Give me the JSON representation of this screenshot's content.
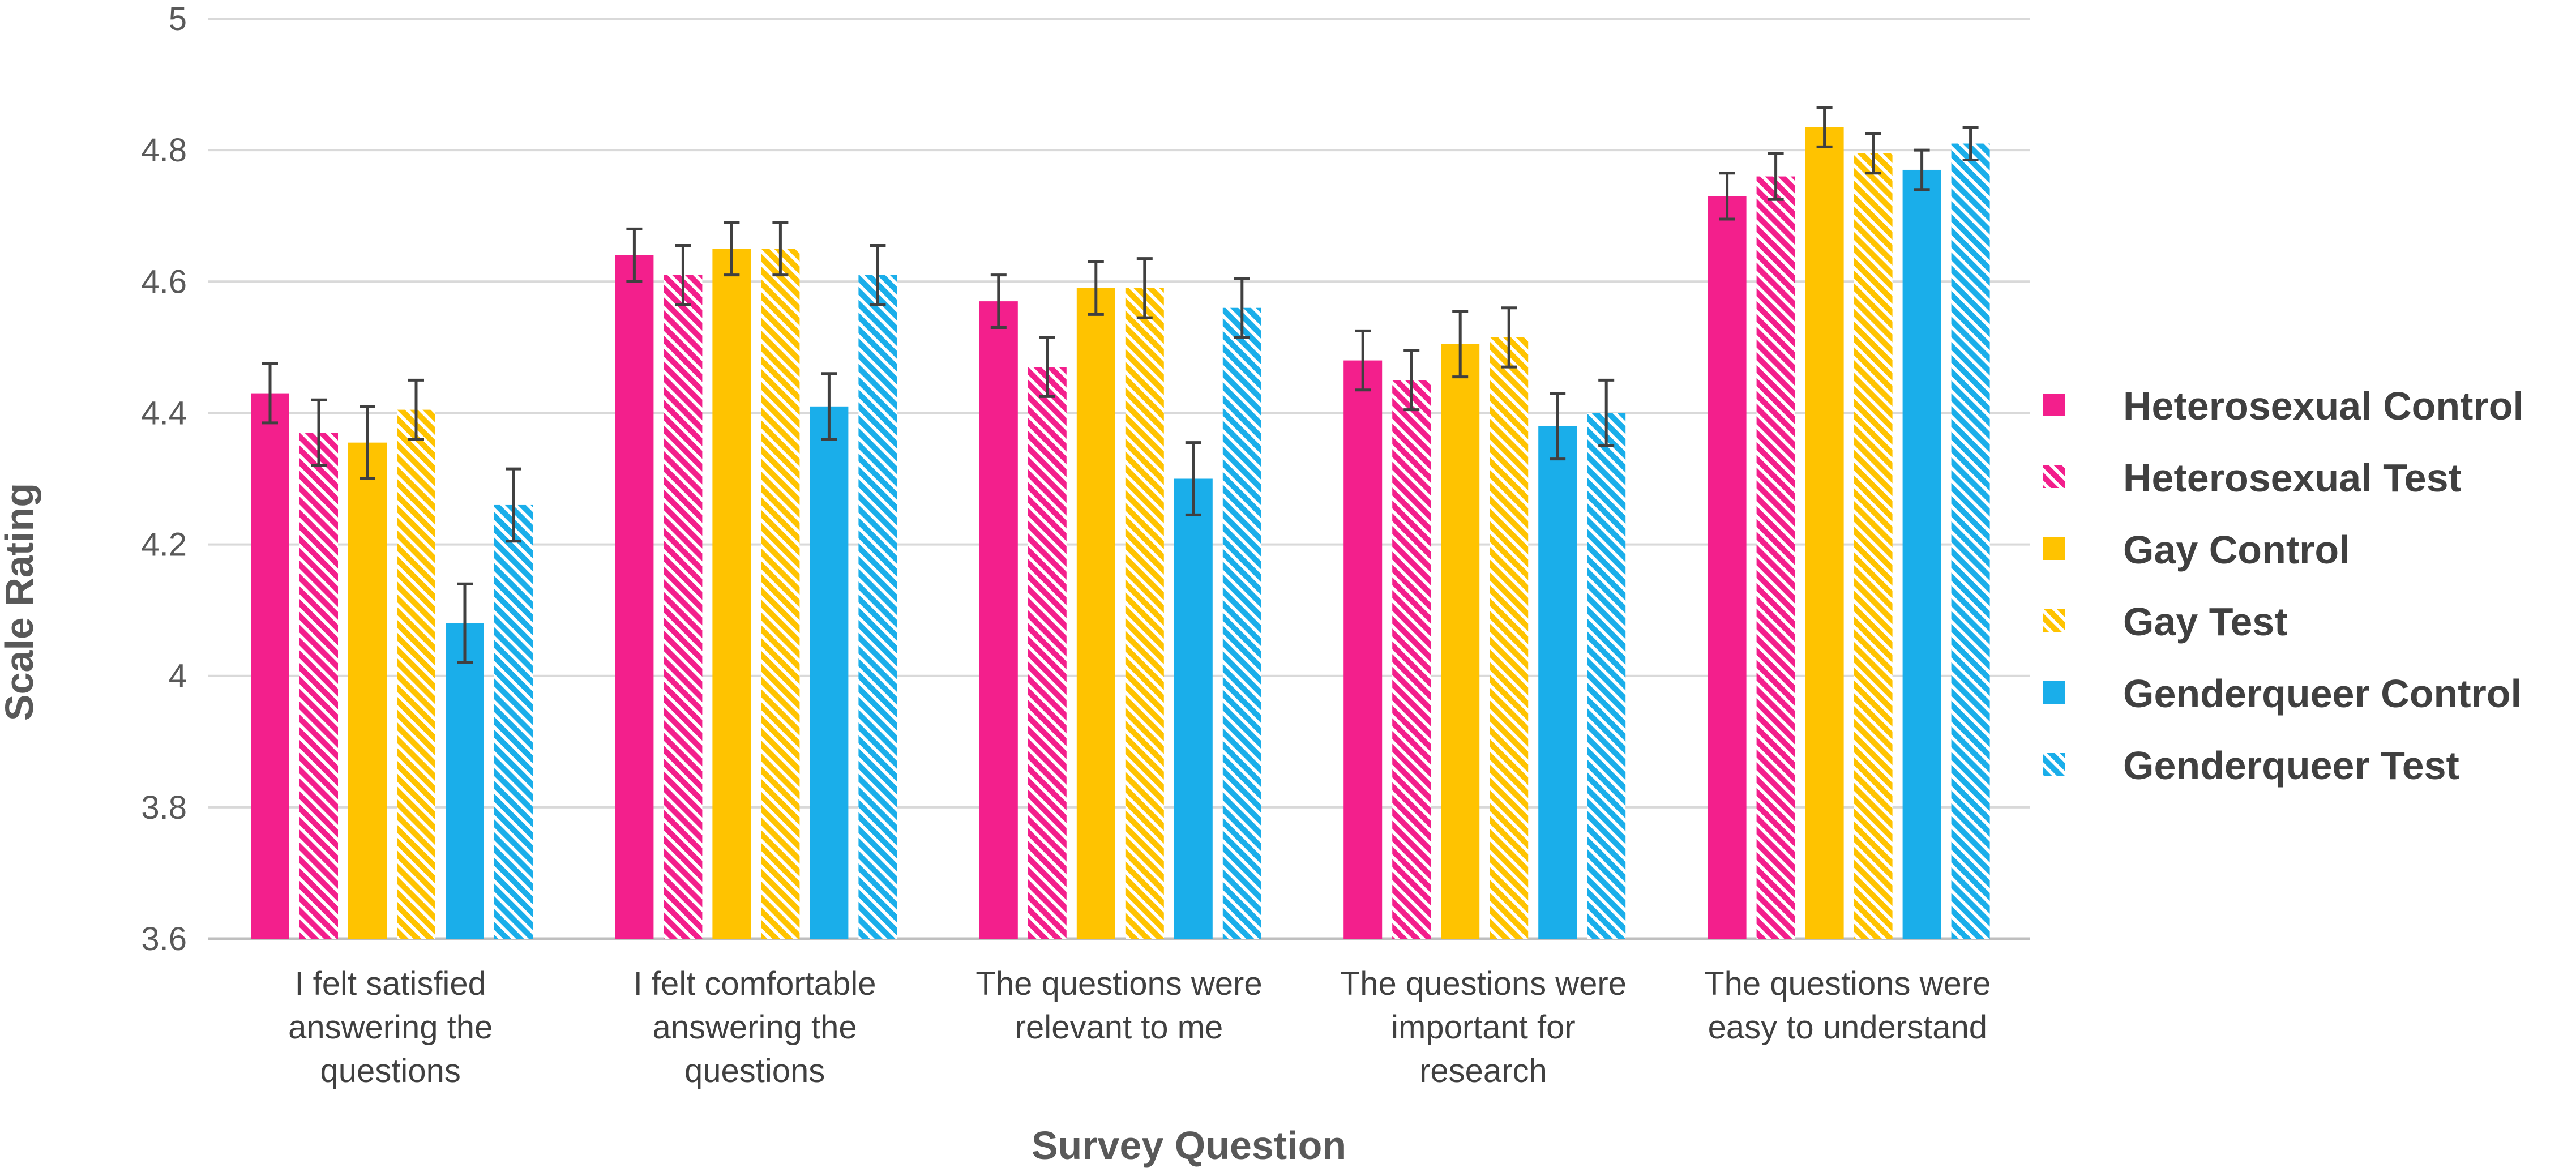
{
  "chart_data": {
    "type": "bar",
    "title": "",
    "xlabel": "Survey Question",
    "ylabel": "Scale Rating",
    "ylim": [
      3.6,
      5
    ],
    "yticks": [
      3.6,
      3.8,
      4,
      4.2,
      4.4,
      4.6,
      4.8,
      5
    ],
    "ytick_labels": [
      "3.6",
      "3.8",
      "4",
      "4.2",
      "4.4",
      "4.6",
      "4.8",
      "5"
    ],
    "grid": true,
    "legend_position": "right",
    "categories": [
      [
        "I felt satisfied",
        "answering the",
        "questions"
      ],
      [
        "I felt comfortable",
        "answering the",
        "questions"
      ],
      [
        "The questions were",
        "relevant to me"
      ],
      [
        "The questions were",
        "important for",
        "research"
      ],
      [
        "The questions were",
        "easy to understand"
      ]
    ],
    "series": [
      {
        "name": "Heterosexual Control",
        "color": "#f31f8c",
        "hatched": false,
        "values": [
          4.43,
          4.64,
          4.57,
          4.48,
          4.73
        ],
        "errors": [
          0.045,
          0.04,
          0.04,
          0.045,
          0.035
        ]
      },
      {
        "name": "Heterosexual Test",
        "color": "#f31f8c",
        "hatched": true,
        "values": [
          4.37,
          4.61,
          4.47,
          4.45,
          4.76
        ],
        "errors": [
          0.05,
          0.045,
          0.045,
          0.045,
          0.035
        ]
      },
      {
        "name": "Gay Control",
        "color": "#ffc300",
        "hatched": false,
        "values": [
          4.355,
          4.65,
          4.59,
          4.505,
          4.835
        ],
        "errors": [
          0.055,
          0.04,
          0.04,
          0.05,
          0.03
        ]
      },
      {
        "name": "Gay Test",
        "color": "#ffc300",
        "hatched": true,
        "values": [
          4.405,
          4.65,
          4.59,
          4.515,
          4.795
        ],
        "errors": [
          0.045,
          0.04,
          0.045,
          0.045,
          0.03
        ]
      },
      {
        "name": "Genderqueer Control",
        "color": "#1aaeea",
        "hatched": false,
        "values": [
          4.08,
          4.41,
          4.3,
          4.38,
          4.77
        ],
        "errors": [
          0.06,
          0.05,
          0.055,
          0.05,
          0.03
        ]
      },
      {
        "name": "Genderqueer Test",
        "color": "#1aaeea",
        "hatched": true,
        "values": [
          4.26,
          4.61,
          4.56,
          4.4,
          4.81
        ],
        "errors": [
          0.055,
          0.045,
          0.045,
          0.05,
          0.025
        ]
      }
    ]
  }
}
